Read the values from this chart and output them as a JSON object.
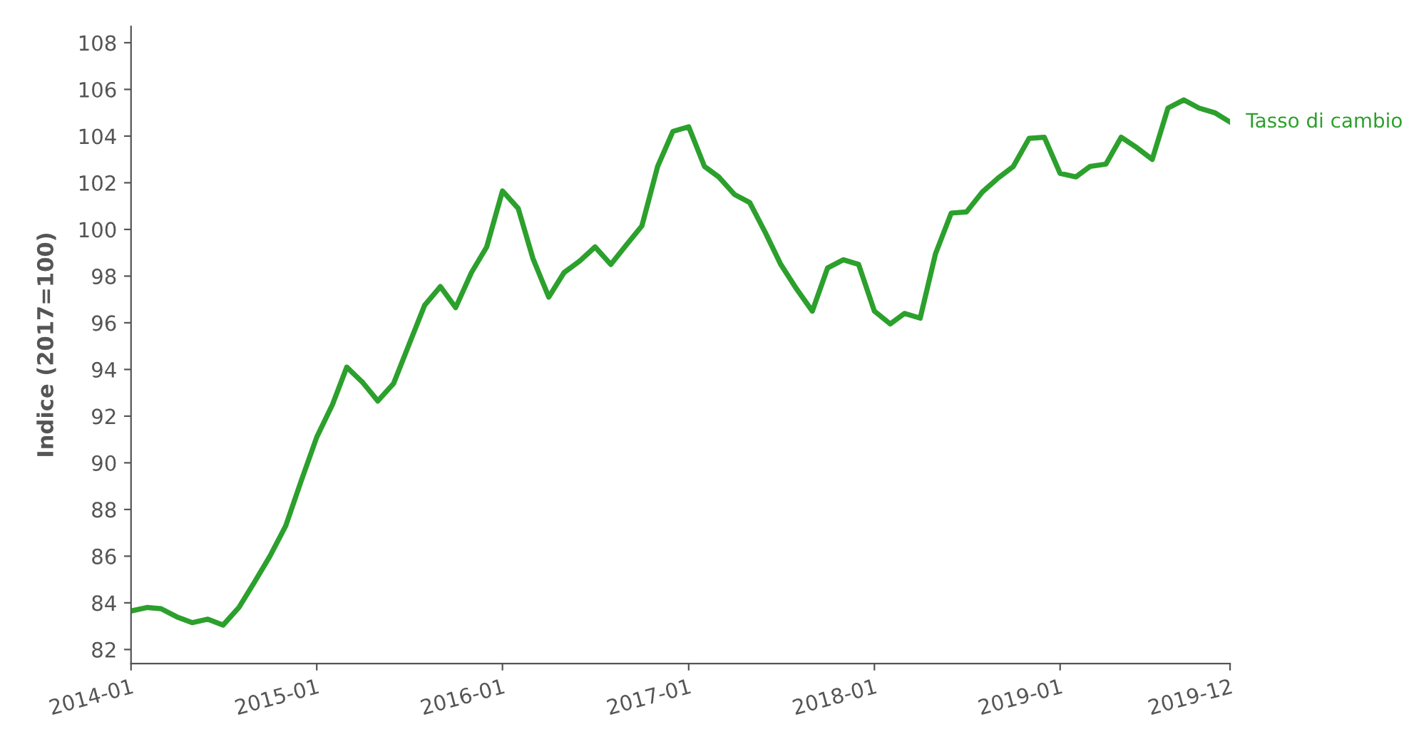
{
  "chart_data": {
    "type": "line",
    "ylabel": "Indice (2017=100)",
    "x": [
      "2014-01",
      "2014-02",
      "2014-03",
      "2014-04",
      "2014-05",
      "2014-06",
      "2014-07",
      "2014-08",
      "2014-09",
      "2014-10",
      "2014-11",
      "2014-12",
      "2015-01",
      "2015-02",
      "2015-03",
      "2015-04",
      "2015-05",
      "2015-06",
      "2015-07",
      "2015-08",
      "2015-09",
      "2015-10",
      "2015-11",
      "2015-12",
      "2016-01",
      "2016-02",
      "2016-03",
      "2016-04",
      "2016-05",
      "2016-06",
      "2016-07",
      "2016-08",
      "2016-09",
      "2016-10",
      "2016-11",
      "2016-12",
      "2017-01",
      "2017-02",
      "2017-03",
      "2017-04",
      "2017-05",
      "2017-06",
      "2017-07",
      "2017-08",
      "2017-09",
      "2017-10",
      "2017-11",
      "2017-12",
      "2018-01",
      "2018-02",
      "2018-03",
      "2018-04",
      "2018-05",
      "2018-06",
      "2018-07",
      "2018-08",
      "2018-09",
      "2018-10",
      "2018-11",
      "2018-12",
      "2019-01",
      "2019-02",
      "2019-03",
      "2019-04",
      "2019-05",
      "2019-06",
      "2019-07",
      "2019-08",
      "2019-09",
      "2019-10",
      "2019-11",
      "2019-12"
    ],
    "series": [
      {
        "name": "Tasso di cambio",
        "color": "#2ca02c",
        "values": [
          83.65,
          83.8,
          83.75,
          83.4,
          83.15,
          83.3,
          83.05,
          83.8,
          84.9,
          86.0,
          87.3,
          89.2,
          91.1,
          92.5,
          94.1,
          93.45,
          92.65,
          93.4,
          95.05,
          96.75,
          97.55,
          96.65,
          98.15,
          99.25,
          101.65,
          100.9,
          98.75,
          97.1,
          98.15,
          98.65,
          99.25,
          98.5,
          99.35,
          100.15,
          102.7,
          104.2,
          104.4,
          102.7,
          102.25,
          101.5,
          101.15,
          99.85,
          98.5,
          97.45,
          96.5,
          98.35,
          98.7,
          98.5,
          96.5,
          95.95,
          96.4,
          96.2,
          98.95,
          100.7,
          100.75,
          101.6,
          102.2,
          102.7,
          103.9,
          103.95,
          102.4,
          102.25,
          102.7,
          102.8,
          103.95,
          103.5,
          103.0,
          105.2,
          105.55,
          105.2,
          105.0,
          104.6
        ]
      }
    ],
    "xlim": [
      "2014-01",
      "2019-12"
    ],
    "xticks": [
      "2014-01",
      "2015-01",
      "2016-01",
      "2017-01",
      "2018-01",
      "2019-01",
      "2019-12"
    ],
    "ylim": [
      81.4,
      108.7
    ],
    "yticks": [
      82,
      84,
      86,
      88,
      90,
      92,
      94,
      96,
      98,
      100,
      102,
      104,
      106,
      108
    ],
    "grid": false,
    "marker": "none",
    "line_style": "solid"
  }
}
